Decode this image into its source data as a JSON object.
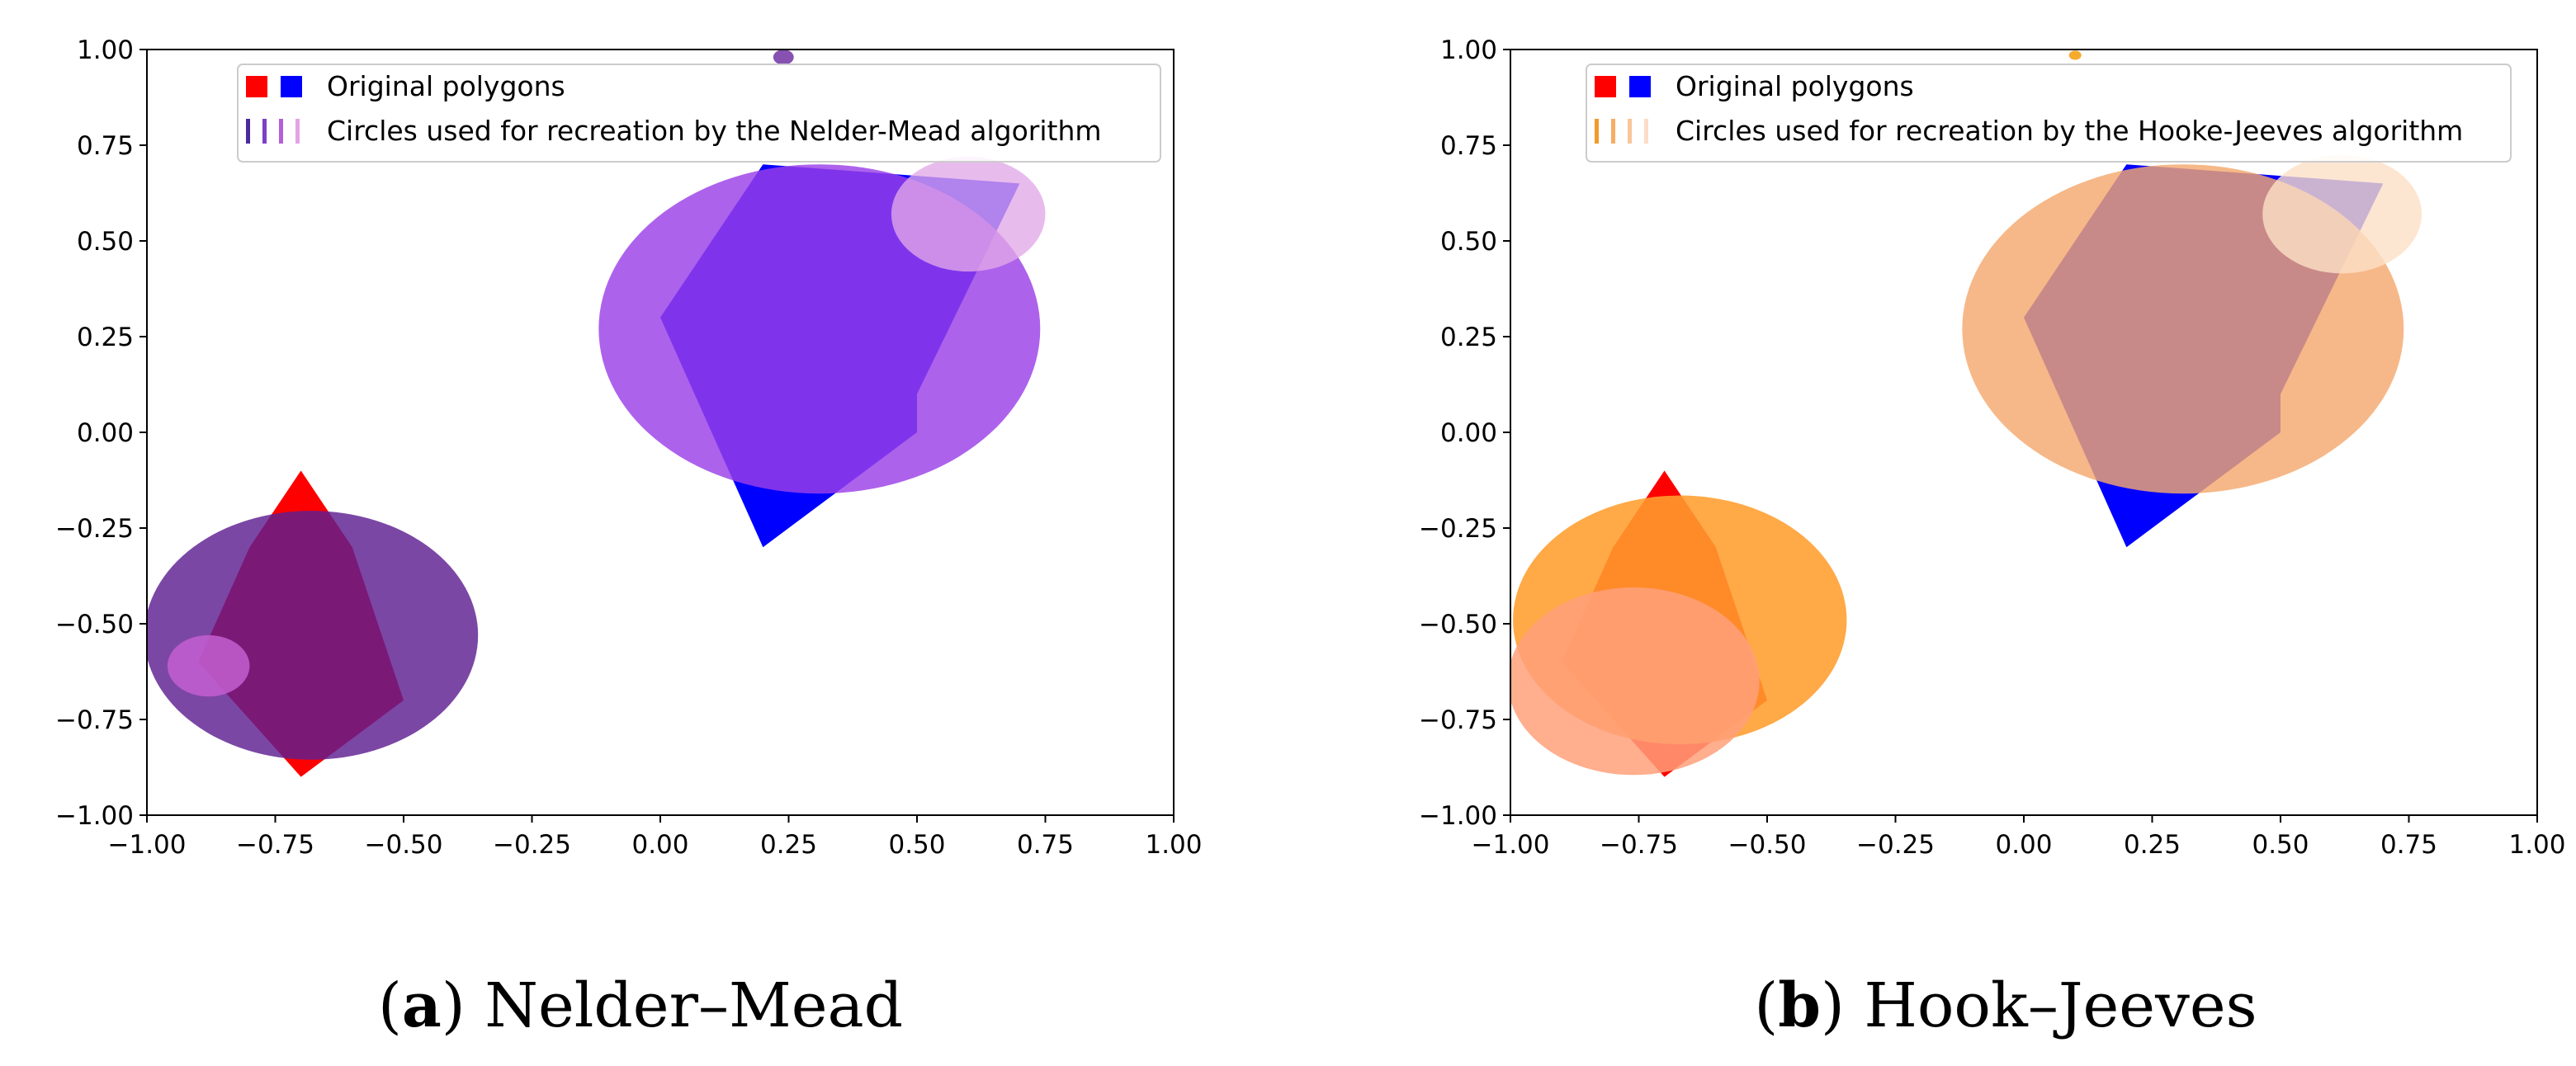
{
  "chart_data": [
    {
      "type": "scatter",
      "title": "",
      "xlabel": "",
      "ylabel": "",
      "xlim": [
        -1.0,
        1.0
      ],
      "ylim": [
        -1.0,
        1.0
      ],
      "grid": false,
      "x_ticks": [
        "−1.00",
        "−0.75",
        "−0.50",
        "−0.25",
        "0.00",
        "0.25",
        "0.50",
        "0.75",
        "1.00"
      ],
      "y_ticks": [
        "−1.00",
        "−0.75",
        "−0.50",
        "−0.25",
        "0.00",
        "0.25",
        "0.50",
        "0.75",
        "1.00"
      ],
      "legend_position": "top-right",
      "legend": {
        "polygons_label": "Original polygons",
        "circles_label": "Circles used for recreation by the Nelder-Mead algorithm"
      },
      "polygon_colors": [
        "#ff0000",
        "#0000ff"
      ],
      "polygons": [
        {
          "name": "red-polygon",
          "color": "#ff0000",
          "points": [
            [
              -0.7,
              -0.1
            ],
            [
              -0.8,
              -0.3
            ],
            [
              -0.9,
              -0.6
            ],
            [
              -0.7,
              -0.9
            ],
            [
              -0.5,
              -0.7
            ],
            [
              -0.6,
              -0.3
            ]
          ]
        },
        {
          "name": "blue-polygon",
          "color": "#0000ff",
          "points": [
            [
              0.2,
              0.7
            ],
            [
              0.0,
              0.3
            ],
            [
              0.2,
              -0.3
            ],
            [
              0.5,
              0.0
            ],
            [
              0.5,
              0.1
            ],
            [
              0.7,
              0.65
            ]
          ]
        }
      ],
      "circles": [
        {
          "cx": -0.68,
          "cy": -0.53,
          "r": 0.325,
          "color": "#5e1f91",
          "alpha": 0.82
        },
        {
          "cx": -0.88,
          "cy": -0.61,
          "r": 0.08,
          "color": "#c45fd0",
          "alpha": 0.85
        },
        {
          "cx": 0.31,
          "cy": 0.27,
          "r": 0.43,
          "color": "#9b3fe8",
          "alpha": 0.82
        },
        {
          "cx": 0.6,
          "cy": 0.57,
          "r": 0.15,
          "color": "#e2a8e8",
          "alpha": 0.78
        },
        {
          "cx": 0.24,
          "cy": 0.98,
          "r": 0.02,
          "color": "#7a3ea8",
          "alpha": 0.9
        }
      ],
      "legend_circle_colors": [
        "#4b2a9e",
        "#7d3fc8",
        "#b45fd8",
        "#e3a3e6"
      ],
      "caption": {
        "letter": "a",
        "text": "Nelder–Mead"
      }
    },
    {
      "type": "scatter",
      "title": "",
      "xlabel": "",
      "ylabel": "",
      "xlim": [
        -1.0,
        1.0
      ],
      "ylim": [
        -1.0,
        1.0
      ],
      "grid": false,
      "x_ticks": [
        "−1.00",
        "−0.75",
        "−0.50",
        "−0.25",
        "0.00",
        "0.25",
        "0.50",
        "0.75",
        "1.00"
      ],
      "y_ticks": [
        "−1.00",
        "−0.75",
        "−0.50",
        "−0.25",
        "0.00",
        "0.25",
        "0.50",
        "0.75",
        "1.00"
      ],
      "legend_position": "top-right",
      "legend": {
        "polygons_label": "Original polygons",
        "circles_label": "Circles used for recreation by the Hooke-Jeeves algorithm"
      },
      "polygon_colors": [
        "#ff0000",
        "#0000ff"
      ],
      "polygons": [
        {
          "name": "red-polygon",
          "color": "#ff0000",
          "points": [
            [
              -0.7,
              -0.1
            ],
            [
              -0.8,
              -0.3
            ],
            [
              -0.9,
              -0.6
            ],
            [
              -0.7,
              -0.9
            ],
            [
              -0.5,
              -0.7
            ],
            [
              -0.6,
              -0.3
            ]
          ]
        },
        {
          "name": "blue-polygon",
          "color": "#0000ff",
          "points": [
            [
              0.2,
              0.7
            ],
            [
              0.0,
              0.3
            ],
            [
              0.2,
              -0.3
            ],
            [
              0.5,
              0.0
            ],
            [
              0.5,
              0.1
            ],
            [
              0.7,
              0.65
            ]
          ]
        }
      ],
      "circles": [
        {
          "cx": -0.67,
          "cy": -0.49,
          "r": 0.325,
          "color": "#ff9d2e",
          "alpha": 0.88
        },
        {
          "cx": -0.76,
          "cy": -0.65,
          "r": 0.245,
          "color": "#ffa07a",
          "alpha": 0.85
        },
        {
          "cx": 0.31,
          "cy": 0.27,
          "r": 0.43,
          "color": "#f4a86e",
          "alpha": 0.82
        },
        {
          "cx": 0.62,
          "cy": 0.57,
          "r": 0.155,
          "color": "#fde0c5",
          "alpha": 0.8
        },
        {
          "cx": 0.1,
          "cy": 0.985,
          "r": 0.012,
          "color": "#f5a623",
          "alpha": 0.95
        }
      ],
      "legend_circle_colors": [
        "#f39a2a",
        "#f6ad63",
        "#f9c598",
        "#fcdcc6"
      ],
      "caption": {
        "letter": "b",
        "text": "Hook–Jeeves"
      }
    }
  ]
}
